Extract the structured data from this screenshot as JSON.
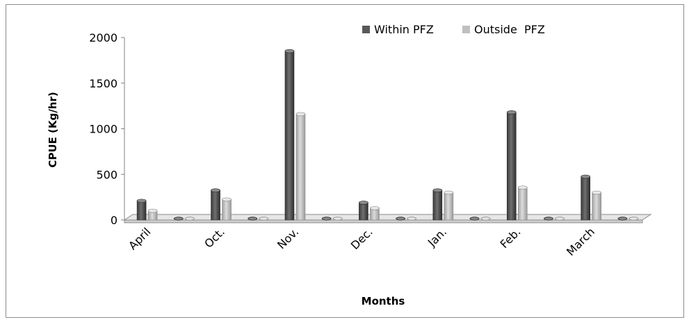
{
  "chart_data": {
    "type": "bar",
    "title": "",
    "xlabel": "Months",
    "ylabel": "CPUE (Kg/hr)",
    "categories": [
      "April",
      "",
      "Oct.",
      "",
      "Nov.",
      "",
      "Dec.",
      "",
      "Jan.",
      "",
      "Feb.",
      "",
      "March",
      ""
    ],
    "series": [
      {
        "name": "Within PFZ",
        "color": "#595959",
        "values": [
          210,
          0,
          325,
          0,
          1850,
          0,
          190,
          0,
          325,
          0,
          1180,
          0,
          475,
          0
        ]
      },
      {
        "name": "Outside  PFZ",
        "color": "#bfbfbf",
        "values": [
          100,
          0,
          225,
          0,
          1160,
          0,
          130,
          0,
          300,
          0,
          355,
          0,
          300,
          0
        ]
      }
    ],
    "ylim": [
      0,
      2000
    ],
    "yticks": [
      0,
      500,
      1000,
      1500,
      2000
    ],
    "grid": false,
    "legend": "top-right",
    "style": "3d-column"
  }
}
